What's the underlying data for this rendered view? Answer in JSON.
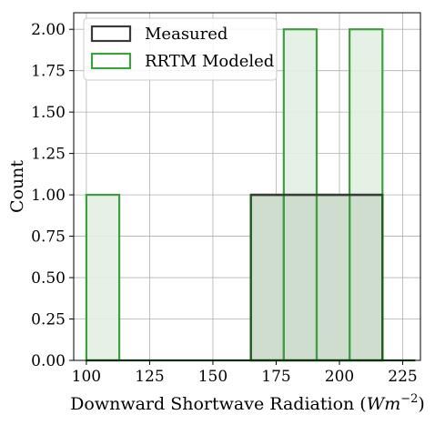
{
  "chart_data": {
    "type": "bar",
    "subtype": "histogram",
    "xlabel": "Downward Shortwave Radiation (Wm⁻²)",
    "ylabel": "Count",
    "xlim": [
      95,
      232
    ],
    "ylim": [
      0,
      2.1
    ],
    "xticks": [
      100,
      125,
      150,
      175,
      200,
      225
    ],
    "yticks": [
      0.0,
      0.25,
      0.5,
      0.75,
      1.0,
      1.25,
      1.5,
      1.75,
      2.0
    ],
    "ytick_labels": [
      "0.00",
      "0.25",
      "0.50",
      "0.75",
      "1.00",
      "1.25",
      "1.50",
      "1.75",
      "2.00"
    ],
    "grid": true,
    "legend_position": "top-left",
    "series": [
      {
        "name": "Measured",
        "color": "#3a3a3a",
        "fill": "#e6e6e6",
        "bins": [
          {
            "x0": 100,
            "x1": 165,
            "count": 0
          },
          {
            "x0": 165,
            "x1": 217,
            "count": 1
          },
          {
            "x0": 217,
            "x1": 230,
            "count": 0
          }
        ]
      },
      {
        "name": "RRTM Modeled",
        "color": "#3e9f3e",
        "fill": "#e3f0e3",
        "bins": [
          {
            "x0": 100,
            "x1": 113,
            "count": 1
          },
          {
            "x0": 113,
            "x1": 126,
            "count": 0
          },
          {
            "x0": 126,
            "x1": 139,
            "count": 0
          },
          {
            "x0": 139,
            "x1": 152,
            "count": 0
          },
          {
            "x0": 152,
            "x1": 165,
            "count": 0
          },
          {
            "x0": 165,
            "x1": 178,
            "count": 1
          },
          {
            "x0": 178,
            "x1": 191,
            "count": 2
          },
          {
            "x0": 191,
            "x1": 204,
            "count": 1
          },
          {
            "x0": 204,
            "x1": 217,
            "count": 2
          }
        ]
      }
    ],
    "overlap_color": "#ceddce",
    "overlap_edge": "#1f5a1f"
  }
}
